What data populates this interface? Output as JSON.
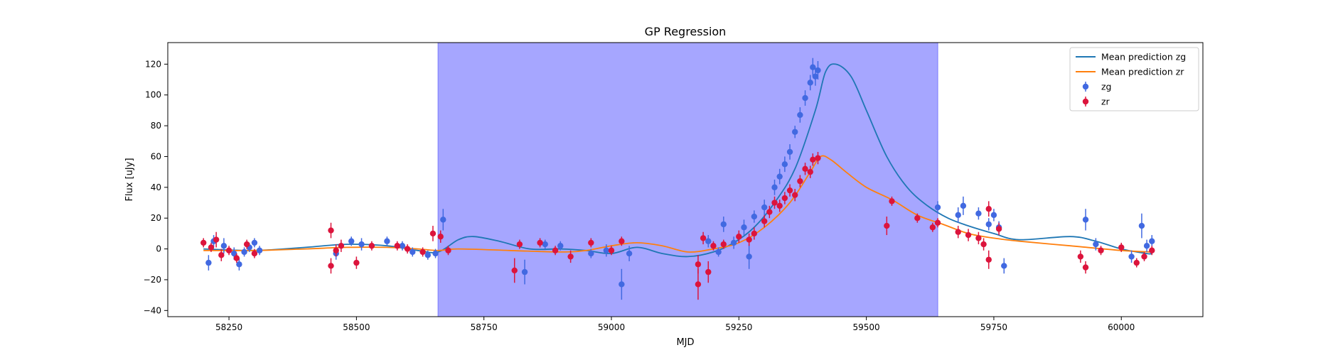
{
  "chart_data": {
    "type": "scatter",
    "title": "GP Regression",
    "xlabel": "MJD",
    "ylabel": "Flux [uJy]",
    "xlim": [
      58130,
      60160
    ],
    "ylim": [
      -44,
      134
    ],
    "xticks": [
      58250,
      58500,
      58750,
      59000,
      59250,
      59500,
      59750,
      60000
    ],
    "xtick_labels": [
      "58250",
      "58500",
      "58750",
      "59000",
      "59250",
      "59500",
      "59750",
      "60000"
    ],
    "yticks": [
      -40,
      -20,
      0,
      20,
      40,
      60,
      80,
      100,
      120
    ],
    "ytick_labels": [
      "−40",
      "−20",
      "0",
      "20",
      "40",
      "60",
      "80",
      "100",
      "120"
    ],
    "shaded_region": {
      "x0": 58660,
      "x1": 59640,
      "color": "#a6a6ff"
    },
    "legend_position": "top-right",
    "legend": [
      {
        "label": "Mean prediction zg",
        "kind": "line",
        "color": "#1f77b4"
      },
      {
        "label": "Mean prediction zr",
        "kind": "line",
        "color": "#ff7f0e"
      },
      {
        "label": "zg",
        "kind": "errorbar",
        "color": "#4169e1"
      },
      {
        "label": "zr",
        "kind": "errorbar",
        "color": "#dc143c"
      }
    ],
    "lines": [
      {
        "name": "Mean prediction zg",
        "color": "#1f77b4",
        "points": [
          [
            58200,
            0
          ],
          [
            58300,
            -1
          ],
          [
            58400,
            1
          ],
          [
            58480,
            3
          ],
          [
            58560,
            2
          ],
          [
            58620,
            -1
          ],
          [
            58660,
            -2
          ],
          [
            58700,
            6
          ],
          [
            58730,
            8
          ],
          [
            58780,
            5
          ],
          [
            58840,
            0
          ],
          [
            58900,
            0
          ],
          [
            58950,
            -1
          ],
          [
            59000,
            -3
          ],
          [
            59050,
            1
          ],
          [
            59100,
            -3
          ],
          [
            59150,
            -5
          ],
          [
            59200,
            -2
          ],
          [
            59240,
            4
          ],
          [
            59280,
            14
          ],
          [
            59320,
            30
          ],
          [
            59360,
            52
          ],
          [
            59400,
            90
          ],
          [
            59420,
            115
          ],
          [
            59440,
            120
          ],
          [
            59470,
            112
          ],
          [
            59500,
            90
          ],
          [
            59540,
            60
          ],
          [
            59580,
            40
          ],
          [
            59620,
            28
          ],
          [
            59660,
            20
          ],
          [
            59700,
            15
          ],
          [
            59750,
            10
          ],
          [
            59800,
            6
          ],
          [
            59900,
            8
          ],
          [
            59950,
            5
          ],
          [
            60000,
            0
          ],
          [
            60050,
            -3
          ],
          [
            60060,
            -3
          ]
        ]
      },
      {
        "name": "Mean prediction zr",
        "color": "#ff7f0e",
        "points": [
          [
            58200,
            -1
          ],
          [
            58300,
            -1
          ],
          [
            58400,
            0
          ],
          [
            58480,
            1
          ],
          [
            58560,
            1
          ],
          [
            58620,
            0
          ],
          [
            58660,
            -1
          ],
          [
            58700,
            0
          ],
          [
            58800,
            -1
          ],
          [
            58900,
            -2
          ],
          [
            58950,
            -1
          ],
          [
            59000,
            2
          ],
          [
            59050,
            4
          ],
          [
            59100,
            2
          ],
          [
            59150,
            -2
          ],
          [
            59200,
            0
          ],
          [
            59250,
            4
          ],
          [
            59300,
            14
          ],
          [
            59350,
            30
          ],
          [
            59390,
            50
          ],
          [
            59410,
            60
          ],
          [
            59430,
            58
          ],
          [
            59460,
            50
          ],
          [
            59500,
            40
          ],
          [
            59550,
            32
          ],
          [
            59600,
            22
          ],
          [
            59650,
            16
          ],
          [
            59700,
            10
          ],
          [
            59750,
            7
          ],
          [
            59800,
            5
          ],
          [
            59900,
            2
          ],
          [
            60000,
            -1
          ],
          [
            60060,
            -2
          ]
        ]
      }
    ],
    "series": [
      {
        "name": "zg",
        "color": "#4169e1",
        "points": [
          [
            58210,
            -9,
            5
          ],
          [
            58220,
            5,
            4
          ],
          [
            58240,
            2,
            5
          ],
          [
            58260,
            -3,
            4
          ],
          [
            58270,
            -10,
            4
          ],
          [
            58280,
            -2,
            3
          ],
          [
            58290,
            1,
            3
          ],
          [
            58300,
            4,
            3
          ],
          [
            58310,
            -1,
            3
          ],
          [
            58460,
            -3,
            4
          ],
          [
            58490,
            5,
            3
          ],
          [
            58510,
            3,
            4
          ],
          [
            58560,
            5,
            3
          ],
          [
            58590,
            2,
            3
          ],
          [
            58610,
            -2,
            3
          ],
          [
            58640,
            -4,
            3
          ],
          [
            58655,
            -3,
            3
          ],
          [
            58670,
            19,
            7
          ],
          [
            58830,
            -15,
            8
          ],
          [
            58870,
            3,
            3
          ],
          [
            58900,
            2,
            3
          ],
          [
            58960,
            -3,
            3
          ],
          [
            58990,
            -1,
            4
          ],
          [
            59020,
            -23,
            10
          ],
          [
            59035,
            -3,
            5
          ],
          [
            59190,
            5,
            4
          ],
          [
            59210,
            -2,
            3
          ],
          [
            59220,
            16,
            5
          ],
          [
            59240,
            4,
            4
          ],
          [
            59260,
            14,
            5
          ],
          [
            59270,
            -5,
            8
          ],
          [
            59280,
            21,
            4
          ],
          [
            59300,
            27,
            5
          ],
          [
            59320,
            40,
            5
          ],
          [
            59330,
            47,
            5
          ],
          [
            59340,
            55,
            5
          ],
          [
            59350,
            63,
            5
          ],
          [
            59360,
            76,
            4
          ],
          [
            59370,
            87,
            5
          ],
          [
            59380,
            98,
            5
          ],
          [
            59390,
            108,
            5
          ],
          [
            59395,
            118,
            6
          ],
          [
            59400,
            112,
            6
          ],
          [
            59405,
            116,
            6
          ],
          [
            59640,
            27,
            4
          ],
          [
            59680,
            22,
            5
          ],
          [
            59690,
            28,
            6
          ],
          [
            59720,
            23,
            4
          ],
          [
            59740,
            16,
            4
          ],
          [
            59750,
            22,
            4
          ],
          [
            59760,
            14,
            4
          ],
          [
            59770,
            -11,
            5
          ],
          [
            59930,
            19,
            7
          ],
          [
            59950,
            3,
            4
          ],
          [
            60020,
            -5,
            4
          ],
          [
            60040,
            15,
            8
          ],
          [
            60050,
            2,
            4
          ],
          [
            60060,
            5,
            4
          ]
        ]
      },
      {
        "name": "zr",
        "color": "#dc143c",
        "points": [
          [
            58200,
            4,
            3
          ],
          [
            58215,
            1,
            3
          ],
          [
            58225,
            6,
            5
          ],
          [
            58235,
            -4,
            4
          ],
          [
            58250,
            -1,
            3
          ],
          [
            58265,
            -6,
            3
          ],
          [
            58285,
            3,
            3
          ],
          [
            58300,
            -3,
            3
          ],
          [
            58450,
            12,
            5
          ],
          [
            58450,
            -11,
            5
          ],
          [
            58460,
            -1,
            4
          ],
          [
            58470,
            2,
            4
          ],
          [
            58500,
            -9,
            4
          ],
          [
            58530,
            2,
            3
          ],
          [
            58580,
            2,
            3
          ],
          [
            58600,
            0,
            3
          ],
          [
            58630,
            -2,
            3
          ],
          [
            58650,
            10,
            5
          ],
          [
            58665,
            8,
            4
          ],
          [
            58680,
            -1,
            3
          ],
          [
            58810,
            -14,
            8
          ],
          [
            58820,
            3,
            3
          ],
          [
            58860,
            4,
            3
          ],
          [
            58890,
            -1,
            3
          ],
          [
            58920,
            -5,
            4
          ],
          [
            58960,
            4,
            3
          ],
          [
            59000,
            -1,
            3
          ],
          [
            59020,
            5,
            3
          ],
          [
            59170,
            -10,
            6
          ],
          [
            59170,
            -23,
            10
          ],
          [
            59180,
            7,
            4
          ],
          [
            59190,
            -15,
            7
          ],
          [
            59200,
            2,
            3
          ],
          [
            59220,
            3,
            3
          ],
          [
            59250,
            8,
            4
          ],
          [
            59270,
            6,
            4
          ],
          [
            59280,
            10,
            4
          ],
          [
            59300,
            18,
            4
          ],
          [
            59310,
            24,
            4
          ],
          [
            59320,
            30,
            4
          ],
          [
            59330,
            28,
            4
          ],
          [
            59340,
            33,
            4
          ],
          [
            59350,
            38,
            4
          ],
          [
            59360,
            35,
            4
          ],
          [
            59370,
            44,
            4
          ],
          [
            59380,
            52,
            4
          ],
          [
            59390,
            50,
            4
          ],
          [
            59395,
            58,
            4
          ],
          [
            59405,
            59,
            4
          ],
          [
            59540,
            15,
            6
          ],
          [
            59550,
            31,
            3
          ],
          [
            59600,
            20,
            3
          ],
          [
            59630,
            14,
            3
          ],
          [
            59640,
            17,
            3
          ],
          [
            59680,
            11,
            4
          ],
          [
            59700,
            9,
            4
          ],
          [
            59720,
            7,
            4
          ],
          [
            59730,
            3,
            4
          ],
          [
            59740,
            -7,
            6
          ],
          [
            59740,
            26,
            5
          ],
          [
            59760,
            13,
            4
          ],
          [
            59920,
            -5,
            4
          ],
          [
            59930,
            -12,
            4
          ],
          [
            59960,
            -1,
            3
          ],
          [
            60000,
            1,
            3
          ],
          [
            60030,
            -9,
            3
          ],
          [
            60045,
            -5,
            3
          ],
          [
            60060,
            -1,
            3
          ]
        ]
      }
    ]
  }
}
